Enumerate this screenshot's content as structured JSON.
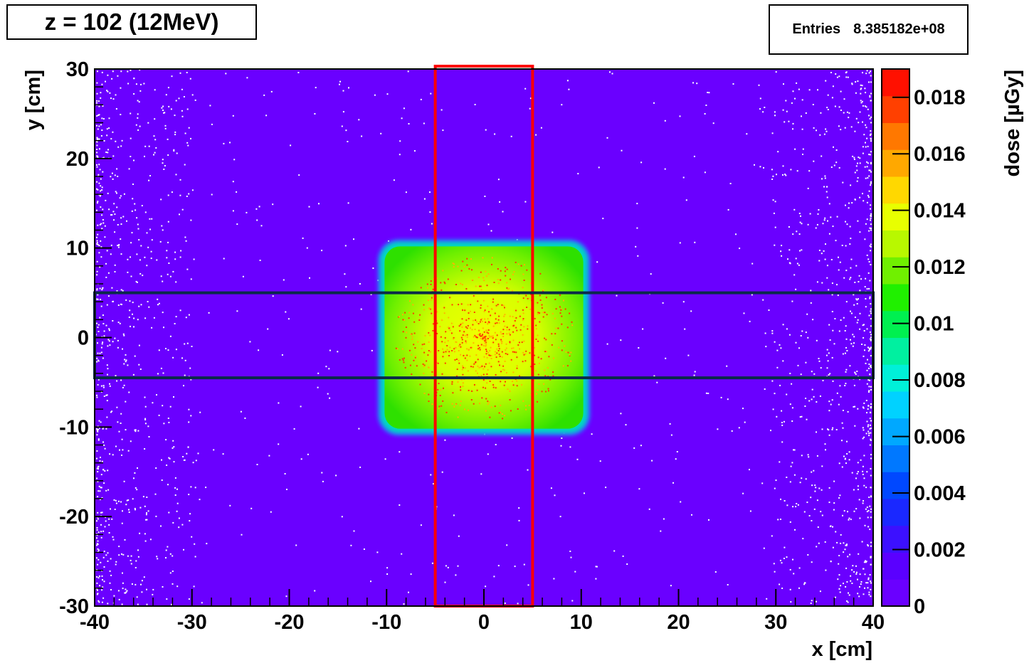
{
  "title": "z = 102 (12MeV)",
  "stats": {
    "label": "Entries",
    "value": "8.385182e+08"
  },
  "chart_data": {
    "type": "heatmap",
    "title": "z = 102 (12MeV)",
    "xlabel": "x [cm]",
    "ylabel": "y [cm]",
    "zlabel": "dose [µGy]",
    "xlim": [
      -40,
      40
    ],
    "ylim": [
      -30,
      30
    ],
    "zlim": [
      0,
      0.019
    ],
    "x_ticks": [
      "-40",
      "-30",
      "-20",
      "-10",
      "0",
      "10",
      "20",
      "30",
      "40"
    ],
    "y_ticks": [
      "-30",
      "-20",
      "-10",
      "0",
      "10",
      "20",
      "30"
    ],
    "z_ticks": [
      "0",
      "0.002",
      "0.004",
      "0.006",
      "0.008",
      "0.01",
      "0.012",
      "0.014",
      "0.016",
      "0.018"
    ],
    "field": {
      "x_range": [
        -10.5,
        10.5
      ],
      "y_range": [
        -10.5,
        10.5
      ],
      "dose_center": 0.014,
      "dose_edge": 0.011,
      "dose_background": 0.0
    },
    "overlays": [
      {
        "name": "vertical profile band",
        "x_range": [
          -5,
          5
        ],
        "y_range": [
          -30,
          30
        ],
        "color": "#ff0000"
      },
      {
        "name": "horizontal profile band",
        "x_range": [
          -40,
          40
        ],
        "y_range": [
          -4.5,
          5
        ],
        "color": "#0b2a4a"
      }
    ],
    "colors": {
      "background": "#6a00ff",
      "field_center": "#e6ff00",
      "field_edge": "#3cf000",
      "field_hot": "#ff3b00"
    }
  }
}
